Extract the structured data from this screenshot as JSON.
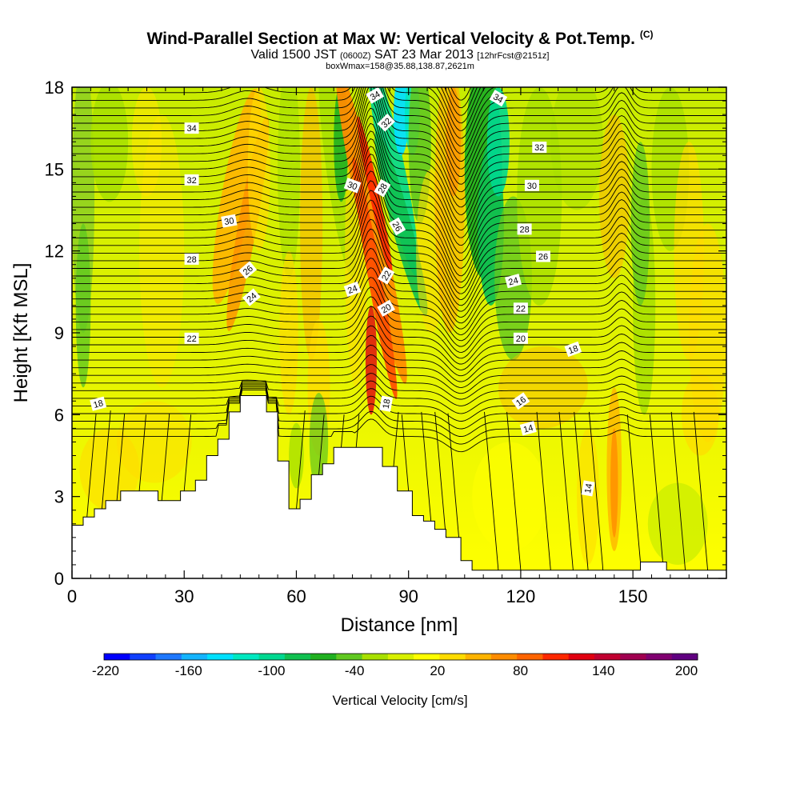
{
  "title": {
    "main": "Wind-Parallel Section at Max W: Vertical Velocity & Pot.Temp.",
    "copyright": "(C)",
    "line2_a": "Valid 1500 JST",
    "line2_b": "(0600Z)",
    "line2_c": "SAT 23 Mar 2013",
    "line2_d": "[12hrFcst@2151z]",
    "line3": "boxWmax=158@35.88,138.87,2621m"
  },
  "chart_data": {
    "type": "contour-section",
    "xlabel": "Distance [nm]",
    "ylabel": "Height [Kft MSL]",
    "xlim": [
      0,
      175
    ],
    "ylim": [
      0,
      18
    ],
    "x_ticks": [
      "0",
      "30",
      "60",
      "90",
      "120",
      "150"
    ],
    "x_tick_values": [
      0,
      30,
      60,
      90,
      120,
      150
    ],
    "y_ticks": [
      "0",
      "3",
      "6",
      "9",
      "12",
      "15",
      "18"
    ],
    "y_tick_values": [
      0,
      3,
      6,
      9,
      12,
      15,
      18
    ],
    "colorbar": {
      "title": "Vertical Velocity [cm/s]",
      "labels": [
        "-220",
        "-160",
        "-100",
        "-40",
        "20",
        "80",
        "140",
        "200"
      ],
      "colors": [
        "#0000ff",
        "#1040ff",
        "#1e78ff",
        "#14b4ff",
        "#00e0ff",
        "#00e8c0",
        "#00d890",
        "#10c050",
        "#20b020",
        "#60c820",
        "#a8e000",
        "#d8f000",
        "#ffff00",
        "#ffdc00",
        "#ffb400",
        "#ff8c00",
        "#ff6400",
        "#ff2800",
        "#e00010",
        "#c00030",
        "#a00050",
        "#800070",
        "#600080"
      ]
    },
    "terrain_profile_kft": [
      [
        0,
        1.95
      ],
      [
        3,
        1.95
      ],
      [
        3,
        2.25
      ],
      [
        6,
        2.25
      ],
      [
        6,
        2.55
      ],
      [
        9,
        2.55
      ],
      [
        9,
        2.85
      ],
      [
        13,
        2.85
      ],
      [
        13,
        3.2
      ],
      [
        23,
        3.2
      ],
      [
        23,
        2.85
      ],
      [
        29,
        2.85
      ],
      [
        29,
        3.2
      ],
      [
        33,
        3.2
      ],
      [
        33,
        3.6
      ],
      [
        36,
        3.6
      ],
      [
        36,
        4.5
      ],
      [
        39,
        4.5
      ],
      [
        39,
        5.1
      ],
      [
        42,
        5.1
      ],
      [
        42,
        6.1
      ],
      [
        45,
        6.1
      ],
      [
        45,
        6.7
      ],
      [
        52,
        6.7
      ],
      [
        52,
        6.1
      ],
      [
        55,
        6.1
      ],
      [
        55,
        4.3
      ],
      [
        58,
        4.3
      ],
      [
        58,
        2.55
      ],
      [
        61,
        2.55
      ],
      [
        61,
        2.9
      ],
      [
        64,
        2.9
      ],
      [
        64,
        3.8
      ],
      [
        67,
        3.8
      ],
      [
        67,
        4.2
      ],
      [
        70,
        4.2
      ],
      [
        70,
        4.8
      ],
      [
        73,
        4.8
      ],
      [
        73,
        4.8
      ],
      [
        83,
        4.8
      ],
      [
        83,
        4.1
      ],
      [
        87,
        4.1
      ],
      [
        87,
        3.2
      ],
      [
        91,
        3.2
      ],
      [
        91,
        2.3
      ],
      [
        94,
        2.3
      ],
      [
        94,
        2.1
      ],
      [
        97,
        2.1
      ],
      [
        97,
        1.8
      ],
      [
        100,
        1.8
      ],
      [
        100,
        1.5
      ],
      [
        104,
        1.5
      ],
      [
        104,
        0.65
      ],
      [
        107,
        0.65
      ],
      [
        107,
        0.3
      ],
      [
        152,
        0.3
      ],
      [
        152,
        0.6
      ],
      [
        159,
        0.6
      ],
      [
        159,
        0.3
      ],
      [
        175,
        0.3
      ]
    ]
  },
  "contour_labels": [
    {
      "text": "34",
      "x": 32,
      "y": 16.5
    },
    {
      "text": "34",
      "x": 81,
      "y": 17.7,
      "rot": -30
    },
    {
      "text": "34",
      "x": 114,
      "y": 17.6,
      "rot": 30
    },
    {
      "text": "32",
      "x": 32,
      "y": 14.6
    },
    {
      "text": "32",
      "x": 84,
      "y": 16.7,
      "rot": -45
    },
    {
      "text": "32",
      "x": 125,
      "y": 15.8
    },
    {
      "text": "30",
      "x": 42,
      "y": 13.1,
      "rot": -10
    },
    {
      "text": "30",
      "x": 75,
      "y": 14.4,
      "rot": 20
    },
    {
      "text": "30",
      "x": 123,
      "y": 14.4
    },
    {
      "text": "28",
      "x": 32,
      "y": 11.7
    },
    {
      "text": "28",
      "x": 83,
      "y": 14.3,
      "rot": -60
    },
    {
      "text": "28",
      "x": 121,
      "y": 12.8
    },
    {
      "text": "26",
      "x": 47,
      "y": 11.3,
      "rot": -40
    },
    {
      "text": "26",
      "x": 87,
      "y": 12.9,
      "rot": 60
    },
    {
      "text": "26",
      "x": 126,
      "y": 11.8
    },
    {
      "text": "24",
      "x": 48,
      "y": 10.3,
      "rot": -40
    },
    {
      "text": "24",
      "x": 75,
      "y": 10.6,
      "rot": -20
    },
    {
      "text": "24",
      "x": 118,
      "y": 10.9,
      "rot": -15
    },
    {
      "text": "22",
      "x": 32,
      "y": 8.8
    },
    {
      "text": "22",
      "x": 84,
      "y": 11.1,
      "rot": -60
    },
    {
      "text": "22",
      "x": 120,
      "y": 9.9
    },
    {
      "text": "20",
      "x": 84,
      "y": 9.9,
      "rot": -30
    },
    {
      "text": "20",
      "x": 120,
      "y": 8.8
    },
    {
      "text": "18",
      "x": 7,
      "y": 6.4,
      "rot": -15
    },
    {
      "text": "18",
      "x": 84,
      "y": 6.4,
      "rot": -80
    },
    {
      "text": "18",
      "x": 134,
      "y": 8.4,
      "rot": -20
    },
    {
      "text": "16",
      "x": 120,
      "y": 6.5,
      "rot": -35
    },
    {
      "text": "14",
      "x": 122,
      "y": 5.5,
      "rot": -15
    },
    {
      "text": "14",
      "x": 138,
      "y": 3.3,
      "rot": -80
    }
  ]
}
